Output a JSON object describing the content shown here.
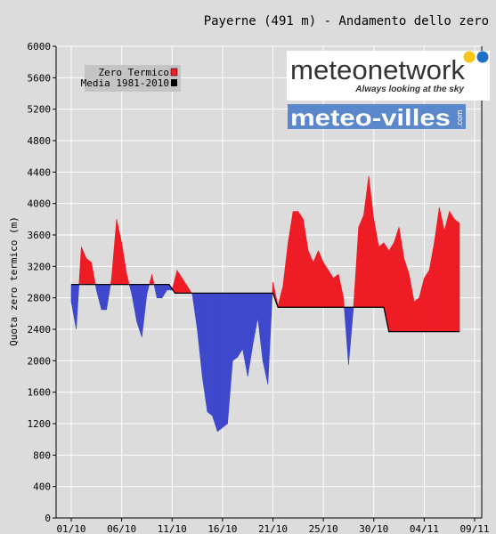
{
  "chart_data": {
    "type": "area",
    "title": "Payerne (491 m) - Andamento dello zero",
    "ylabel": "Quota zero termico (m)",
    "xlabel": "",
    "ylim": [
      0,
      6000
    ],
    "yticks": [
      0,
      400,
      800,
      1200,
      1600,
      2000,
      2400,
      2800,
      3200,
      3600,
      4000,
      4400,
      4800,
      5200,
      5600,
      6000
    ],
    "xlim": [
      0,
      42
    ],
    "xtick_days": [
      0,
      5,
      10,
      15,
      20,
      25,
      30,
      35,
      40
    ],
    "xtick_labels": [
      "01/10",
      "06/10",
      "11/10",
      "16/10",
      "21/10",
      "25/10",
      "30/10",
      "04/11",
      "09/11"
    ],
    "grid": true,
    "colors": {
      "above": "#ee1c25",
      "below": "#3f48cc",
      "mean": "#000000"
    },
    "legend": {
      "position": "top-left",
      "entries": [
        {
          "label": "Zero Termico",
          "color": "#ee1c25"
        },
        {
          "label": "Media 1981-2010",
          "color": "#000000"
        }
      ]
    },
    "series": [
      {
        "name": "Zero Termico",
        "x": [
          0,
          0.5,
          1,
          1.5,
          2,
          2.5,
          3,
          3.5,
          4,
          4.5,
          5,
          5.5,
          6,
          6.5,
          7,
          7.5,
          8,
          8.5,
          9,
          9.5,
          10,
          10.5,
          11,
          11.5,
          12,
          12.5,
          13,
          13.5,
          14,
          14.5,
          15,
          15.5,
          16,
          16.5,
          17,
          17.5,
          18,
          18.5,
          19,
          19.5,
          20,
          20.5,
          21,
          21.5,
          22,
          22.5,
          23,
          23.5,
          24,
          24.5,
          25,
          25.5,
          26,
          26.5,
          27,
          27.5,
          28,
          28.5,
          29,
          29.5,
          30,
          30.5,
          31,
          31.5,
          32,
          32.5,
          33,
          33.5,
          34,
          34.5,
          35,
          35.5,
          36,
          36.5,
          37,
          37.5,
          38,
          38.5
        ],
        "y": [
          2750,
          2400,
          3450,
          3300,
          3250,
          2900,
          2650,
          2650,
          3050,
          3800,
          3500,
          3100,
          2850,
          2500,
          2300,
          2850,
          3100,
          2800,
          2800,
          2900,
          2900,
          3150,
          3050,
          2950,
          2850,
          2400,
          1800,
          1350,
          1300,
          1100,
          1150,
          1200,
          2000,
          2050,
          2150,
          1800,
          2200,
          2550,
          2000,
          1700,
          3000,
          2700,
          2950,
          3500,
          3900,
          3900,
          3800,
          3400,
          3250,
          3400,
          3250,
          3150,
          3050,
          3100,
          2800,
          1950,
          2700,
          3700,
          3850,
          4350,
          3800,
          3450,
          3500,
          3400,
          3500,
          3700,
          3300,
          3100,
          2750,
          2800,
          3050,
          3150,
          3500,
          3950,
          3650,
          3900,
          3800,
          3750
        ]
      },
      {
        "name": "Media 1981-2010",
        "x": [
          0,
          9.7,
          10.3,
          20,
          20.5,
          31,
          31.5,
          38.5
        ],
        "y": [
          2970,
          2970,
          2860,
          2860,
          2680,
          2680,
          2370,
          2370
        ]
      }
    ]
  },
  "logos": {
    "meteonetwork": {
      "name": "meteonetwork",
      "tagline": "Always looking at the sky"
    },
    "meteovilles": {
      "name": "meteo-villes",
      "suffix": ".com"
    }
  }
}
